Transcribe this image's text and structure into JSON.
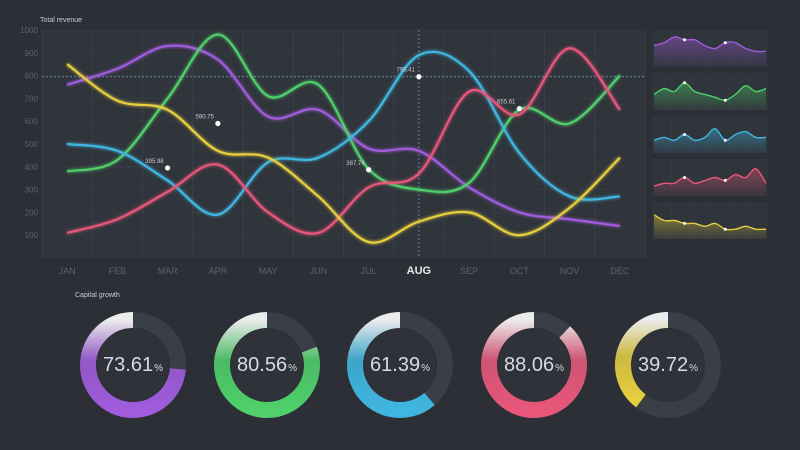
{
  "colors": {
    "purple": "#a05cdc",
    "green": "#4fd06a",
    "blue": "#3fb6e0",
    "pink": "#e8577a",
    "yellow": "#e6cf3f",
    "grid": "#3a3e46",
    "panel": "#30343b"
  },
  "headings": {
    "revenue": "Total revenue",
    "growth": "Capital growth"
  },
  "chart_data": [
    {
      "type": "line",
      "title": "Total revenue",
      "categories": [
        "JAN",
        "FEB",
        "MAR",
        "APR",
        "MAY",
        "JUN",
        "JUL",
        "AUG",
        "SEP",
        "OCT",
        "NOV",
        "DEC"
      ],
      "highlight_category": "AUG",
      "y_ticks": [
        100,
        200,
        300,
        400,
        500,
        600,
        700,
        800,
        900,
        1000
      ],
      "ylim": [
        0,
        1000
      ],
      "grid": true,
      "series": [
        {
          "color": "purple",
          "values": [
            760,
            830,
            930,
            870,
            620,
            650,
            480,
            470,
            310,
            200,
            170,
            140
          ]
        },
        {
          "color": "green",
          "values": [
            380,
            430,
            700,
            980,
            710,
            760,
            390,
            300,
            330,
            650,
            590,
            800
          ]
        },
        {
          "color": "blue",
          "values": [
            500,
            470,
            340,
            190,
            420,
            440,
            600,
            890,
            820,
            460,
            270,
            270
          ]
        },
        {
          "color": "pink",
          "values": [
            110,
            170,
            290,
            410,
            200,
            110,
            310,
            370,
            730,
            630,
            920,
            650
          ]
        },
        {
          "color": "yellow",
          "values": [
            850,
            690,
            650,
            470,
            440,
            270,
            70,
            160,
            200,
            100,
            220,
            440
          ]
        }
      ],
      "annotations": [
        {
          "text": "795.41",
          "x": "AUG",
          "y": 795
        },
        {
          "text": "590.75",
          "x": "APR",
          "y": 590
        },
        {
          "text": "395.98",
          "x": "MAR",
          "y": 395
        },
        {
          "text": "655.61",
          "x": "OCT",
          "y": 655
        },
        {
          "text": "387.74",
          "x": "JUL",
          "y": 387
        }
      ]
    },
    {
      "type": "area",
      "color": "purple",
      "values": [
        6,
        7,
        9,
        8,
        8,
        6,
        5,
        7,
        7,
        5,
        4,
        4
      ]
    },
    {
      "type": "area",
      "color": "green",
      "values": [
        4,
        6,
        5,
        8,
        5,
        4,
        3,
        2,
        4,
        7,
        5,
        6
      ]
    },
    {
      "type": "area",
      "color": "blue",
      "values": [
        3,
        4,
        3,
        5,
        3,
        4,
        7,
        3,
        5,
        6,
        4,
        4
      ]
    },
    {
      "type": "area",
      "color": "pink",
      "values": [
        2,
        3,
        3,
        5,
        3,
        4,
        5,
        4,
        6,
        5,
        8,
        3
      ]
    },
    {
      "type": "area",
      "color": "yellow",
      "values": [
        7,
        5,
        5,
        4,
        4,
        3,
        4,
        2,
        2,
        3,
        2,
        2
      ]
    },
    {
      "type": "pie",
      "name": "Capital growth",
      "color": "purple",
      "value": 73.61
    },
    {
      "type": "pie",
      "color": "green",
      "value": 80.56
    },
    {
      "type": "pie",
      "color": "blue",
      "value": 61.39
    },
    {
      "type": "pie",
      "color": "pink",
      "value": 88.06
    },
    {
      "type": "pie",
      "color": "yellow",
      "value": 39.72
    }
  ],
  "donut_text": {
    "d0": "73.61",
    "d1": "80.56",
    "d2": "61.39",
    "d3": "88.06",
    "d4": "39.72",
    "pct": "%"
  }
}
